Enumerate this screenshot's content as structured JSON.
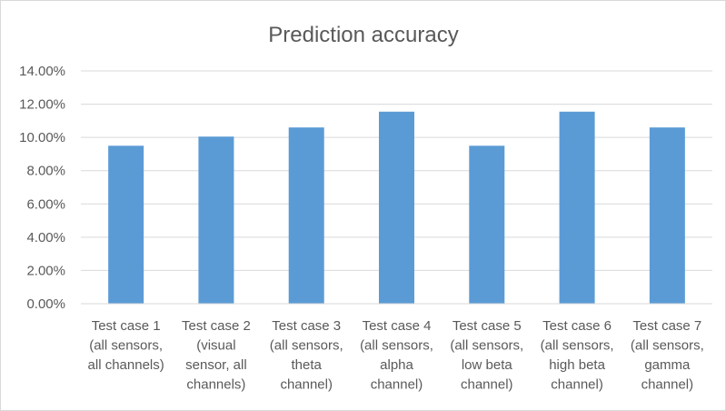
{
  "chart_data": {
    "type": "bar",
    "title": "Prediction accuracy",
    "xlabel": "",
    "ylabel": "",
    "ylim": [
      0,
      0.14
    ],
    "y_ticks": [
      0,
      0.02,
      0.04,
      0.06,
      0.08,
      0.1,
      0.12,
      0.14
    ],
    "y_tick_labels": [
      "0.00%",
      "2.00%",
      "4.00%",
      "6.00%",
      "8.00%",
      "10.00%",
      "12.00%",
      "14.00%"
    ],
    "grid": true,
    "legend": "none",
    "bar_color": "#5b9bd5",
    "categories": [
      [
        "Test case 1",
        "(all sensors,",
        "all channels)"
      ],
      [
        "Test case 2",
        "(visual",
        "sensor, all",
        "channels)"
      ],
      [
        "Test case 3",
        "(all sensors,",
        "theta",
        "channel)"
      ],
      [
        "Test case 4",
        "(all sensors,",
        "alpha",
        "channel)"
      ],
      [
        "Test case 5",
        "(all sensors,",
        "low beta",
        "channel)"
      ],
      [
        "Test case 6",
        "(all sensors,",
        "high beta",
        "channel)"
      ],
      [
        "Test case 7",
        "(all sensors,",
        "gamma",
        "channel)"
      ]
    ],
    "values": [
      0.095,
      0.1005,
      0.106,
      0.1155,
      0.095,
      0.1155,
      0.106
    ]
  }
}
